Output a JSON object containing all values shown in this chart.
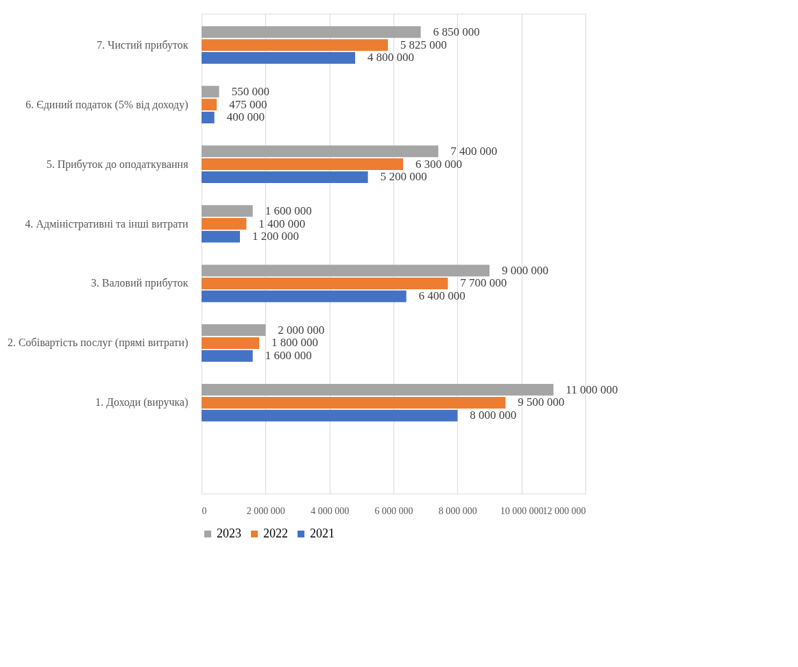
{
  "chart_data": {
    "type": "bar",
    "orientation": "horizontal",
    "categories": [
      "7. Чистий прибуток",
      "6. Єдиний податок (5% від доходу)",
      "5. Прибуток до оподаткування",
      "4. Адміністративні та інші витрати",
      "3. Валовий прибуток",
      "2. Собівартість послуг (прямі витрати)",
      "1. Доходи (виручка)",
      null
    ],
    "series": [
      {
        "name": "2023",
        "color": "#a5a5a5",
        "values": [
          6850000,
          550000,
          7400000,
          1600000,
          9000000,
          2000000,
          11000000,
          null
        ],
        "value_labels": [
          "6 850 000",
          "550 000",
          "7 400 000",
          "1 600 000",
          "9 000 000",
          "2 000 000",
          "11 000 000",
          null
        ]
      },
      {
        "name": "2022",
        "color": "#ed7d31",
        "values": [
          5825000,
          475000,
          6300000,
          1400000,
          7700000,
          1800000,
          9500000,
          null
        ],
        "value_labels": [
          "5 825 000",
          "475 000",
          "6 300 000",
          "1 400 000",
          "7 700 000",
          "1 800 000",
          "9 500 000",
          null
        ]
      },
      {
        "name": "2021",
        "color": "#4472c4",
        "values": [
          4800000,
          400000,
          5200000,
          1200000,
          6400000,
          1600000,
          8000000,
          null
        ],
        "value_labels": [
          "4 800 000",
          "400 000",
          "5 200 000",
          "1 200 000",
          "6 400 000",
          "1 600 000",
          "8 000 000",
          null
        ]
      }
    ],
    "xlim": [
      0,
      12000000
    ],
    "xticks": [
      0,
      {
        "value": 2000000,
        "label": "2 000 000"
      },
      {
        "value": 4000000,
        "label": "4 000 000"
      },
      {
        "value": 6000000,
        "label": "6 000 000"
      },
      {
        "value": 8000000,
        "label": "8 000 000"
      },
      {
        "value": 10000000,
        "label": "10 000 000"
      },
      {
        "value": 12000000,
        "label": "12 000 000"
      }
    ],
    "grid": "x",
    "legend": "bottom"
  }
}
